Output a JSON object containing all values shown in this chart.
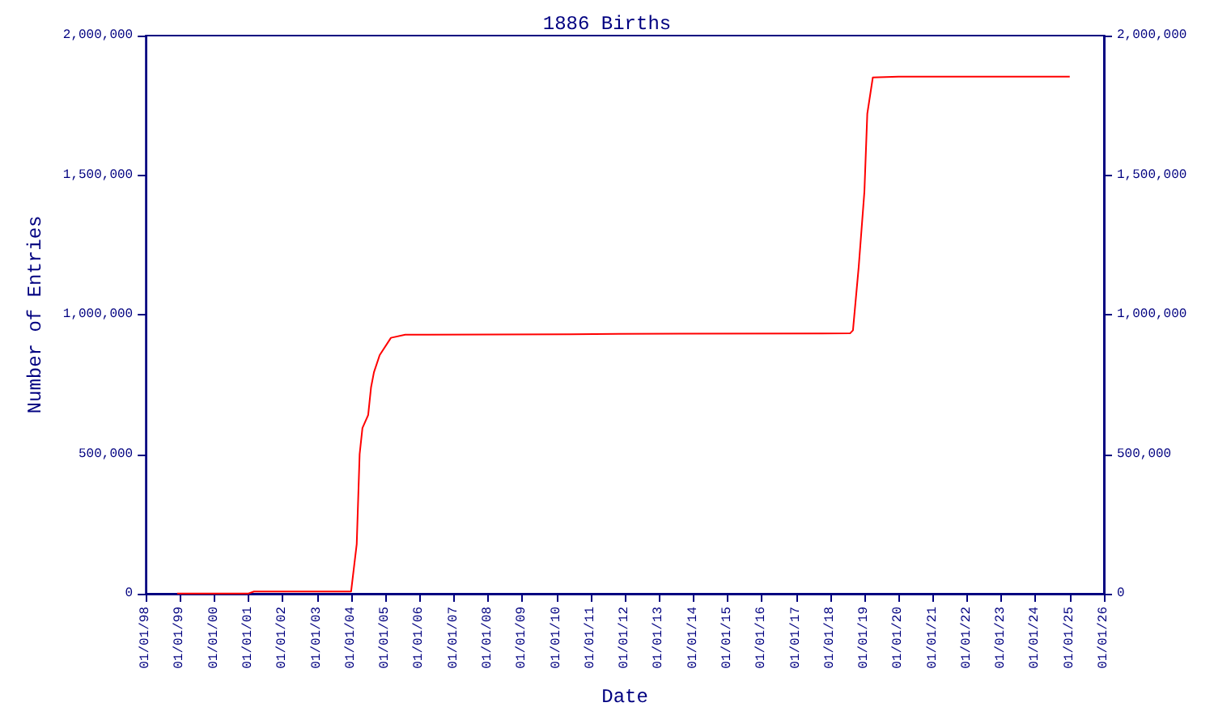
{
  "chart_data": {
    "type": "line",
    "title": "1886 Births",
    "xlabel": "Date",
    "ylabel": "Number of Entries",
    "x": [
      "1998-12",
      "2001-01",
      "2001-03",
      "2004-01",
      "2004-03",
      "2004-04",
      "2004-05",
      "2004-07",
      "2004-08",
      "2004-09",
      "2004-11",
      "2005-03",
      "2005-08",
      "2006-04",
      "2010-06",
      "2013-08",
      "2018-08",
      "2018-09",
      "2018-11",
      "2019-01",
      "2019-02",
      "2019-04",
      "2020-01",
      "2025-01"
    ],
    "series": [
      {
        "color": "#ff0000",
        "values": [
          1000,
          1000,
          8000,
          8000,
          178000,
          500000,
          594000,
          640000,
          740000,
          794000,
          855000,
          917000,
          928000,
          928000,
          930000,
          932000,
          933000,
          944000,
          1170000,
          1440000,
          1720000,
          1850000,
          1853000,
          1853000
        ]
      }
    ],
    "xlim": [
      "1998-01-01",
      "2026-01-01"
    ],
    "xticks": [
      {
        "value": "1998-01-01",
        "label": "01/01/98"
      },
      {
        "value": "1999-01-01",
        "label": "01/01/99"
      },
      {
        "value": "2000-01-01",
        "label": "01/01/00"
      },
      {
        "value": "2001-01-01",
        "label": "01/01/01"
      },
      {
        "value": "2002-01-01",
        "label": "01/01/02"
      },
      {
        "value": "2003-01-01",
        "label": "01/01/03"
      },
      {
        "value": "2004-01-01",
        "label": "01/01/04"
      },
      {
        "value": "2005-01-01",
        "label": "01/01/05"
      },
      {
        "value": "2006-01-01",
        "label": "01/01/06"
      },
      {
        "value": "2007-01-01",
        "label": "01/01/07"
      },
      {
        "value": "2008-01-01",
        "label": "01/01/08"
      },
      {
        "value": "2009-01-01",
        "label": "01/01/09"
      },
      {
        "value": "2010-01-01",
        "label": "01/01/10"
      },
      {
        "value": "2011-01-01",
        "label": "01/01/11"
      },
      {
        "value": "2012-01-01",
        "label": "01/01/12"
      },
      {
        "value": "2013-01-01",
        "label": "01/01/13"
      },
      {
        "value": "2014-01-01",
        "label": "01/01/14"
      },
      {
        "value": "2015-01-01",
        "label": "01/01/15"
      },
      {
        "value": "2016-01-01",
        "label": "01/01/16"
      },
      {
        "value": "2017-01-01",
        "label": "01/01/17"
      },
      {
        "value": "2018-01-01",
        "label": "01/01/18"
      },
      {
        "value": "2019-01-01",
        "label": "01/01/19"
      },
      {
        "value": "2020-01-01",
        "label": "01/01/20"
      },
      {
        "value": "2021-01-01",
        "label": "01/01/21"
      },
      {
        "value": "2022-01-01",
        "label": "01/01/22"
      },
      {
        "value": "2023-01-01",
        "label": "01/01/23"
      },
      {
        "value": "2024-01-01",
        "label": "01/01/24"
      },
      {
        "value": "2025-01-01",
        "label": "01/01/25"
      },
      {
        "value": "2026-01-01",
        "label": "01/01/26"
      }
    ],
    "ylim": [
      0,
      2000000
    ],
    "yticks": [
      {
        "value": 0,
        "label": "0"
      },
      {
        "value": 500000,
        "label": "500,000"
      },
      {
        "value": 1000000,
        "label": "1,000,000"
      },
      {
        "value": 1500000,
        "label": "1,500,000"
      },
      {
        "value": 2000000,
        "label": "2,000,000"
      }
    ],
    "y2lim": [
      0,
      2000000
    ],
    "y2ticks": [
      {
        "value": 0,
        "label": "0"
      },
      {
        "value": 500000,
        "label": "500,000"
      },
      {
        "value": 1000000,
        "label": "1,000,000"
      },
      {
        "value": 1500000,
        "label": "1,500,000"
      },
      {
        "value": 2000000,
        "label": "2,000,000"
      }
    ],
    "grid": false,
    "marker": "none",
    "line_style": "solid"
  }
}
